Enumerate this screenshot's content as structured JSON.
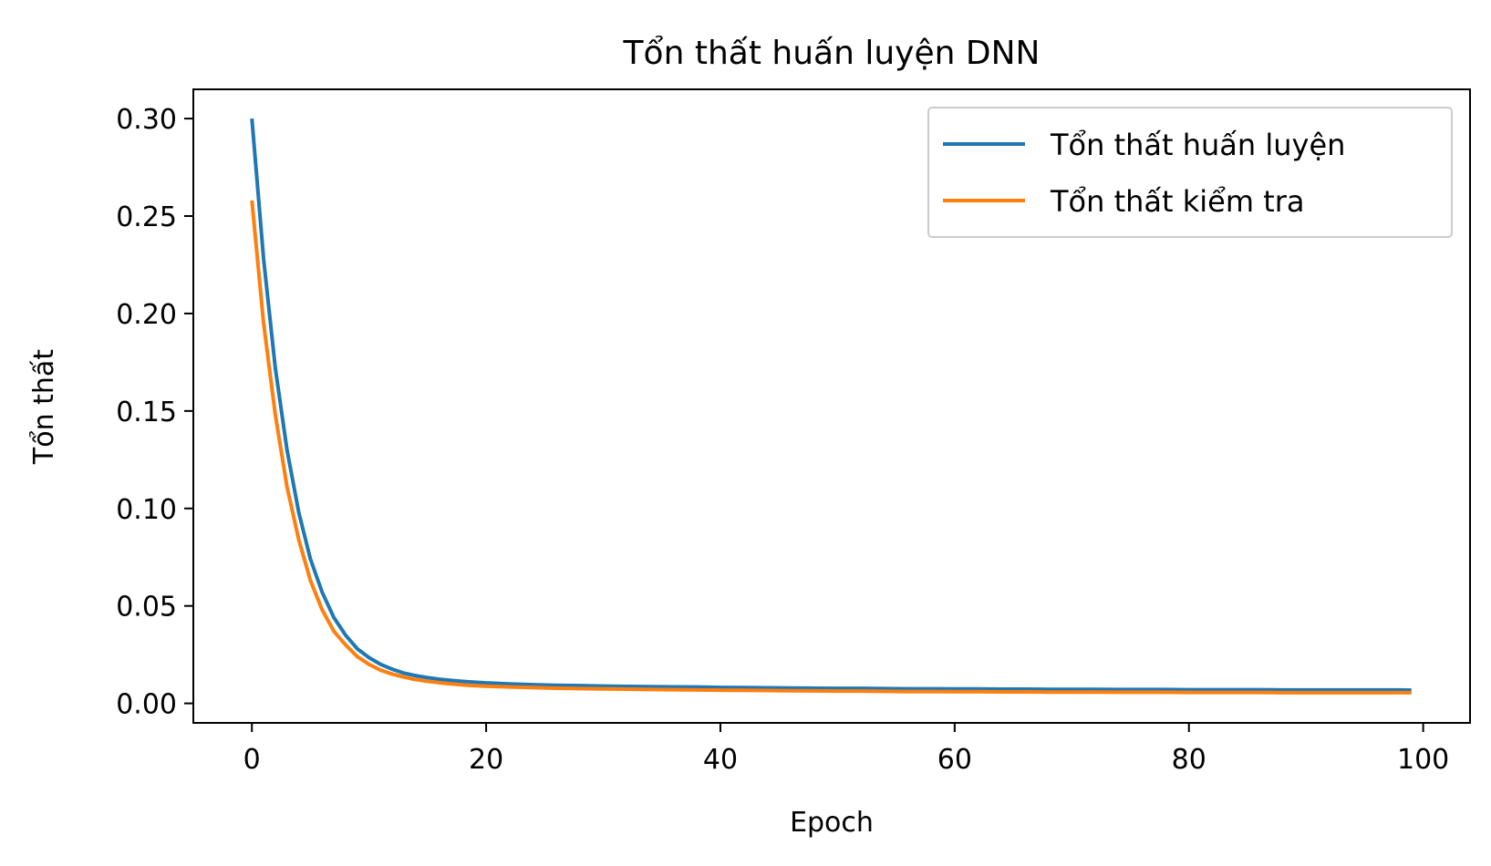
{
  "chart_data": {
    "type": "line",
    "title": "Tổn thất huấn luyện DNN",
    "xlabel": "Epoch",
    "ylabel": "Tổn thất",
    "xlim": [
      -5,
      104
    ],
    "ylim": [
      -0.01,
      0.315
    ],
    "x_ticks": [
      0,
      20,
      40,
      60,
      80,
      100
    ],
    "x_tick_labels": [
      "0",
      "20",
      "40",
      "60",
      "80",
      "100"
    ],
    "y_ticks": [
      0.0,
      0.05,
      0.1,
      0.15,
      0.2,
      0.25,
      0.3
    ],
    "y_tick_labels": [
      "0.00",
      "0.05",
      "0.10",
      "0.15",
      "0.20",
      "0.25",
      "0.30"
    ],
    "grid": false,
    "legend_position": "top-right",
    "x": [
      0,
      1,
      2,
      3,
      4,
      5,
      6,
      7,
      8,
      9,
      10,
      11,
      12,
      13,
      14,
      15,
      16,
      17,
      18,
      19,
      20,
      22,
      24,
      26,
      28,
      30,
      32,
      34,
      36,
      38,
      40,
      42,
      44,
      46,
      48,
      50,
      52,
      54,
      56,
      58,
      60,
      62,
      64,
      66,
      68,
      70,
      72,
      74,
      76,
      78,
      80,
      82,
      84,
      86,
      88,
      90,
      92,
      94,
      96,
      98,
      99
    ],
    "series": [
      {
        "name": "Tổn thất huấn luyện",
        "color": "#1f77b4",
        "values": [
          0.3,
          0.228,
          0.172,
          0.13,
          0.098,
          0.074,
          0.057,
          0.044,
          0.035,
          0.028,
          0.0235,
          0.02,
          0.0175,
          0.0155,
          0.0142,
          0.0132,
          0.0124,
          0.0118,
          0.0113,
          0.0109,
          0.0105,
          0.01,
          0.0096,
          0.0093,
          0.0091,
          0.0089,
          0.0087,
          0.0086,
          0.0085,
          0.0084,
          0.0082,
          0.0081,
          0.008,
          0.0079,
          0.0078,
          0.0077,
          0.0077,
          0.0076,
          0.0075,
          0.0075,
          0.0074,
          0.0074,
          0.0073,
          0.0073,
          0.0072,
          0.0072,
          0.0072,
          0.0071,
          0.0071,
          0.0071,
          0.007,
          0.007,
          0.007,
          0.007,
          0.0069,
          0.0069,
          0.0069,
          0.0069,
          0.0069,
          0.0069,
          0.0068
        ]
      },
      {
        "name": "Tổn thất kiểm tra",
        "color": "#ff7f0e",
        "values": [
          0.258,
          0.195,
          0.148,
          0.111,
          0.084,
          0.063,
          0.048,
          0.037,
          0.03,
          0.024,
          0.02,
          0.017,
          0.015,
          0.0135,
          0.0122,
          0.0113,
          0.0106,
          0.01,
          0.0095,
          0.0091,
          0.0088,
          0.0084,
          0.0081,
          0.0078,
          0.0076,
          0.0074,
          0.0073,
          0.0071,
          0.007,
          0.0069,
          0.0068,
          0.0067,
          0.0066,
          0.0065,
          0.0064,
          0.0063,
          0.0063,
          0.0062,
          0.0061,
          0.0061,
          0.006,
          0.006,
          0.0059,
          0.0059,
          0.0058,
          0.0058,
          0.0058,
          0.0057,
          0.0057,
          0.0057,
          0.0056,
          0.0056,
          0.0056,
          0.0056,
          0.0055,
          0.0055,
          0.0055,
          0.0055,
          0.0055,
          0.0055,
          0.0055
        ]
      }
    ]
  }
}
